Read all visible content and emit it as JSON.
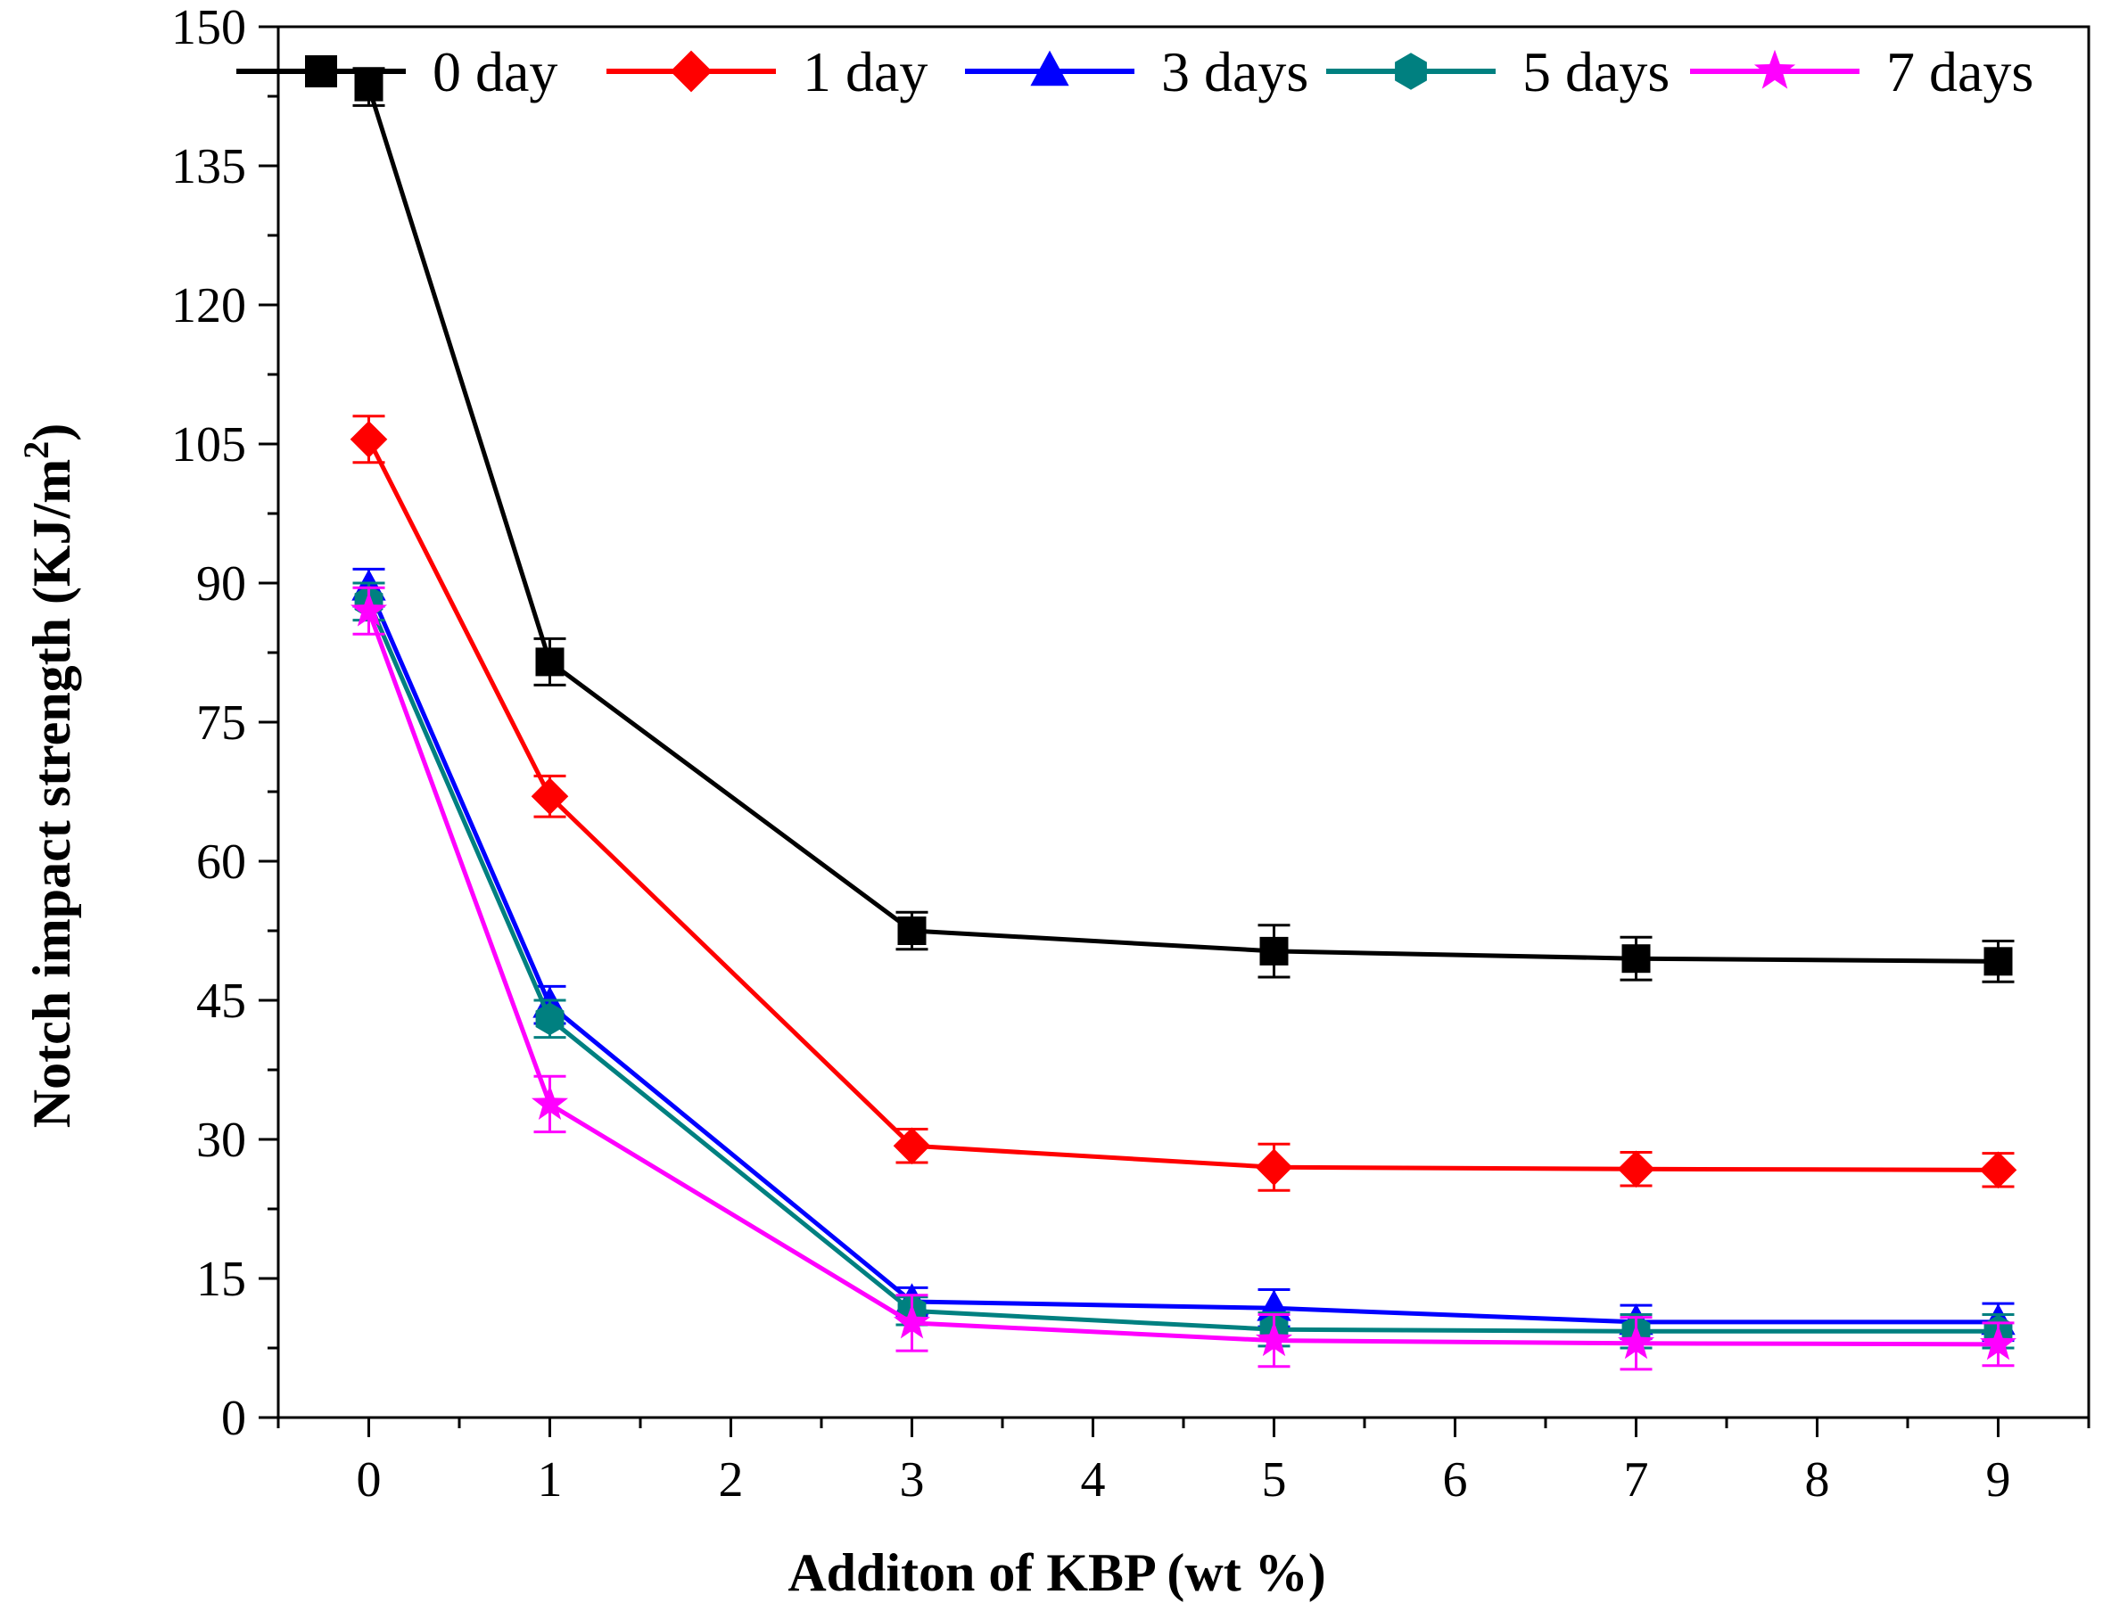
{
  "chart_data": {
    "type": "line",
    "title": "",
    "xlabel": "Additon of KBP (wt %)",
    "ylabel_main": "Notch impact strength (KJ/m",
    "ylabel_sup": "2",
    "ylabel_close": ")",
    "xlim": [
      -0.5,
      9.5
    ],
    "ylim": [
      0,
      150
    ],
    "xticks": [
      "0",
      "1",
      "2",
      "3",
      "4",
      "5",
      "6",
      "7",
      "8",
      "9"
    ],
    "yticks": [
      "0",
      "15",
      "30",
      "45",
      "60",
      "75",
      "90",
      "105",
      "120",
      "135",
      "150"
    ],
    "legend_position": "top",
    "x": [
      0,
      1,
      3,
      5,
      7,
      9
    ],
    "series": [
      {
        "name": "0 day",
        "color": "#000000",
        "marker": "square",
        "values": [
          143.5,
          81.5,
          52.5,
          50.3,
          49.5,
          49.2
        ],
        "errors": [
          2.0,
          2.5,
          2.0,
          2.8,
          2.3,
          2.2
        ]
      },
      {
        "name": "1 day",
        "color": "#ff0000",
        "marker": "diamond",
        "values": [
          105.5,
          67.0,
          29.3,
          27.0,
          26.8,
          26.7
        ],
        "errors": [
          2.5,
          2.2,
          1.8,
          2.5,
          1.8,
          1.8
        ]
      },
      {
        "name": "3 days",
        "color": "#0000ff",
        "marker": "triangle",
        "values": [
          89.5,
          44.5,
          12.5,
          11.8,
          10.3,
          10.3
        ],
        "errors": [
          2.0,
          2.0,
          1.5,
          2.0,
          1.8,
          2.0
        ]
      },
      {
        "name": "5 days",
        "color": "#008080",
        "marker": "hexagon",
        "values": [
          88.0,
          43.0,
          11.5,
          9.5,
          9.3,
          9.3
        ],
        "errors": [
          2.0,
          2.0,
          1.5,
          1.8,
          1.8,
          1.8
        ]
      },
      {
        "name": "7 days",
        "color": "#ff00ff",
        "marker": "star",
        "values": [
          87.0,
          33.8,
          10.2,
          8.3,
          8.0,
          7.9
        ],
        "errors": [
          2.5,
          3.0,
          3.0,
          2.8,
          2.8,
          2.3
        ]
      }
    ]
  }
}
